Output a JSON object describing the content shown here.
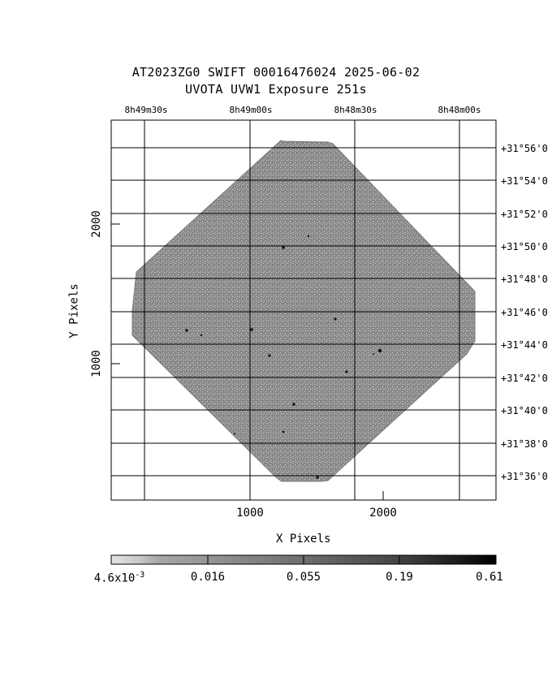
{
  "title": {
    "line1": "AT2023ZG0 SWIFT 00016476024 2025-06-02",
    "line2": "UVOTA UVW1 Exposure       251s"
  },
  "axes": {
    "xlabel": "X Pixels",
    "ylabel": "Y Pixels",
    "x_ticks": [
      "1000",
      "2000"
    ],
    "y_ticks": [
      "1000",
      "2000"
    ],
    "ra_ticks": [
      "8h49m30s",
      "8h49m00s",
      "8h48m30s",
      "8h48m00s"
    ],
    "dec_ticks": [
      "+31°56'0",
      "+31°54'0",
      "+31°52'0",
      "+31°50'0",
      "+31°48'0",
      "+31°46'0",
      "+31°44'0",
      "+31°42'0",
      "+31°40'0",
      "+31°38'0",
      "+31°36'0"
    ]
  },
  "colorbar": {
    "tick_min": "4.6x10",
    "tick_min_exp": "-3",
    "ticks": [
      "0.016",
      "0.055",
      "0.19",
      "0.61"
    ]
  },
  "colors": {
    "image_fill": "#8a8a8a",
    "grid": "#000000"
  }
}
